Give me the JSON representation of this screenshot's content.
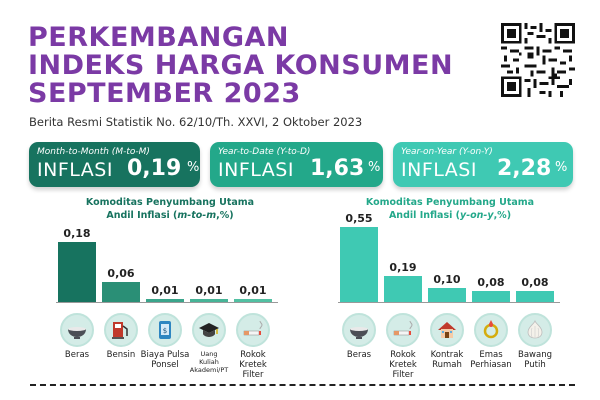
{
  "header": {
    "title_lines": [
      "PERKEMBANGAN",
      "INDEKS HARGA KONSUMEN",
      "SEPTEMBER 2023"
    ],
    "subtitle": "Berita Resmi Statistik No. 62/10/Th. XXVI, 2 Oktober 2023"
  },
  "cards": [
    {
      "label": "Month-to-Month (M-to-M)",
      "word": "INFLASI",
      "value": "0,19",
      "unit": "%",
      "color": "#17735f"
    },
    {
      "label": "Year-to-Date (Y-to-D)",
      "word": "INFLASI",
      "value": "1,63",
      "unit": "%",
      "color": "#23a88a"
    },
    {
      "label": "Year-on-Year (Y-on-Y)",
      "word": "INFLASI",
      "value": "2,28",
      "unit": "%",
      "color": "#3fc9b3"
    }
  ],
  "chart_data": [
    {
      "type": "bar",
      "title_line1": "Komoditas Penyumbang Utama",
      "title_line2_prefix": "Andil Inflasi (",
      "title_line2_italic": "m-to-m",
      "title_line2_suffix": ",%)",
      "categories": [
        "Beras",
        "Bensin",
        "Biaya Pulsa\nPonsel",
        "Uang\nKuliah\nAkademi/PT",
        "Rokok\nKretek Filter"
      ],
      "values": [
        0.18,
        0.06,
        0.01,
        0.01,
        0.01
      ],
      "value_labels": [
        "0,18",
        "0,06",
        "0,01",
        "0,01",
        "0,01"
      ],
      "icons": [
        "rice-bowl-icon",
        "fuel-pump-icon",
        "phone-credit-icon",
        "graduation-cap-icon",
        "cigarette-icon"
      ],
      "colors": [
        "#17735f",
        "#2a8f76",
        "#3aa58b",
        "#47b497",
        "#52c0a2"
      ]
    },
    {
      "type": "bar",
      "title_line1": "Komoditas Penyumbang Utama",
      "title_line2_prefix": "Andil Inflasi (",
      "title_line2_italic": "y-on-y",
      "title_line2_suffix": ",%)",
      "categories": [
        "Beras",
        "Rokok\nKretek Filter",
        "Kontrak\nRumah",
        "Emas\nPerhiasan",
        "Bawang\nPutih"
      ],
      "values": [
        0.55,
        0.19,
        0.1,
        0.08,
        0.08
      ],
      "value_labels": [
        "0,55",
        "0,19",
        "0,10",
        "0,08",
        "0,08"
      ],
      "icons": [
        "rice-bowl-icon",
        "cigarette-icon",
        "house-icon",
        "gold-jewelry-icon",
        "garlic-icon"
      ],
      "colors": [
        "#3fc9b3",
        "#3fc9b3",
        "#3fc9b3",
        "#3fc9b3",
        "#3fc9b3"
      ]
    }
  ]
}
